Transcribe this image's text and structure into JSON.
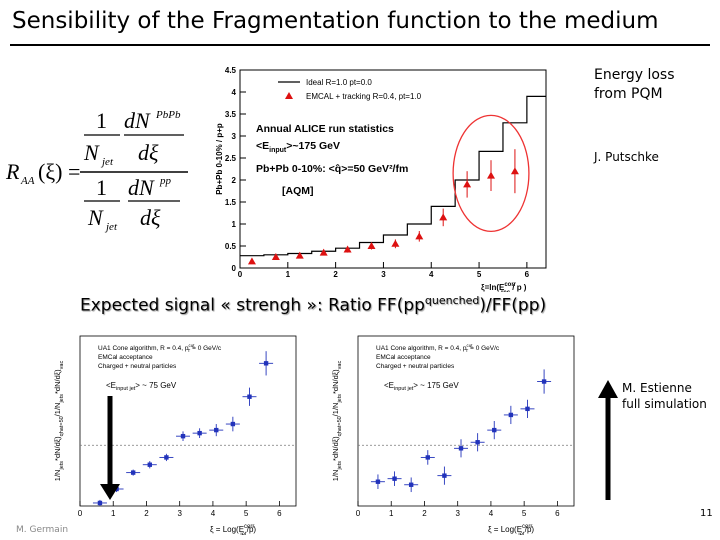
{
  "slide": {
    "title": "Sensibility of the Fragmentation function  to the medium",
    "expected_signal": {
      "prefix": "Expected signal « strengh »: Ratio FF(pp",
      "sup": "quenched",
      "suffix": ")/FF(pp)"
    },
    "energy_loss_note": [
      "Energy loss",
      "from PQM"
    ],
    "putschke_note": "J. Putschke",
    "estienne_note": [
      "M. Estienne",
      "full simulation"
    ],
    "page_number": "11",
    "author": "M. Germain"
  },
  "formula": {
    "lhs": "R",
    "lhs_sub": "AA",
    "arg": "(ξ) =",
    "num_frac_num": "1",
    "num_frac_den": "N",
    "num_frac_den_sub": "jet",
    "num_d_num": "dN",
    "num_d_num_sup": "PbPb",
    "num_d_den": "dξ",
    "den_frac_num": "1",
    "den_frac_den": "N",
    "den_frac_den_sub": "jet",
    "den_d_num": "dN",
    "den_d_num_sup": "pp",
    "den_d_den": "dξ"
  },
  "colors": {
    "red_marker": "#dd1111",
    "blue_marker": "#2233bb",
    "highlight": "#ee3333",
    "arrow": "#000000"
  },
  "chart_data": [
    {
      "id": "top",
      "type": "scatter",
      "ylabel": "Pb+Pb 0-10% / p+p",
      "xlabel": "ξ=ln(E",
      "xlabel_sup": "corr",
      "xlabel_sub": "rec",
      "xlabel_end": " / p )",
      "xlim": [
        0,
        6.4
      ],
      "ylim": [
        0,
        4.5
      ],
      "xticks": [
        0,
        1,
        2,
        3,
        4,
        5,
        6
      ],
      "yticks": [
        0,
        0.5,
        1,
        1.5,
        2,
        2.5,
        3,
        3.5,
        4,
        4.5
      ],
      "ytick_labels": [
        "0",
        "0.5",
        "1",
        "1.5",
        "2",
        "2.5",
        "3",
        "3.5",
        "4",
        "4.5"
      ],
      "legend": [
        {
          "label": "Ideal R=1.0 pt=0.0",
          "kind": "line"
        },
        {
          "label": "EMCAL + tracking R=0.4, pt=1.0",
          "kind": "triangle"
        }
      ],
      "annotations": [
        "Annual ALICE run statistics",
        "<E",
        "input",
        ">~175 GeV",
        "Pb+Pb 0-10%: <q̂>=50 GeV²/fm",
        "[AQM]"
      ],
      "step_edges": [
        0,
        0.5,
        1,
        1.5,
        2,
        2.5,
        3,
        3.5,
        4,
        4.5,
        5,
        5.5,
        6,
        6.4
      ],
      "step_values": [
        0.28,
        0.3,
        0.33,
        0.38,
        0.45,
        0.58,
        0.75,
        1.0,
        1.4,
        2.0,
        2.65,
        3.3,
        3.9
      ],
      "series": [
        {
          "name": "EMCAL + tracking R=0.4, pt=1.0",
          "x": [
            0.25,
            0.75,
            1.25,
            1.75,
            2.25,
            2.75,
            3.25,
            3.75,
            4.25,
            4.75,
            5.25,
            5.75
          ],
          "y": [
            0.15,
            0.25,
            0.28,
            0.35,
            0.42,
            0.5,
            0.55,
            0.72,
            1.15,
            1.9,
            2.1,
            2.2
          ],
          "err": [
            0.05,
            0.05,
            0.06,
            0.06,
            0.07,
            0.08,
            0.1,
            0.12,
            0.2,
            0.3,
            0.35,
            0.5
          ],
          "highlight_x": [
            4.75,
            5.25,
            5.75
          ]
        }
      ]
    },
    {
      "id": "bottom-left",
      "type": "scatter",
      "ylabel": "1/N",
      "ylabel_parts": [
        "1/N",
        "jets",
        "*dN/dξ)",
        "qhat=50",
        "/1/N",
        "jets",
        "*dN/dξ)",
        "vac"
      ],
      "xlabel": "ξ = Log(E",
      "xlabel_sup": "corr",
      "xlabel_sub": "jet",
      "xlabel_end": "/p)",
      "xlim": [
        0,
        6.5
      ],
      "ylim": [
        0,
        2.8
      ],
      "xticks": [
        0,
        1,
        2,
        3,
        4,
        5,
        6
      ],
      "legend_lines": [
        "UA1 Cone algorithm, R = 0.4, p",
        "cut",
        "T",
        " = 0 GeV/c",
        "EMCal acceptance",
        "Charged + neutral particles"
      ],
      "energy_label": [
        "<E",
        "input jet",
        "> ~ 75 GeV"
      ],
      "reference_line": 1,
      "series": [
        {
          "name": "ratio",
          "x": [
            0.6,
            1.1,
            1.6,
            2.1,
            2.6,
            3.1,
            3.6,
            4.1,
            4.6,
            5.1,
            5.6
          ],
          "y": [
            0.05,
            0.28,
            0.55,
            0.68,
            0.8,
            1.15,
            1.2,
            1.25,
            1.35,
            1.8,
            2.35
          ],
          "err": [
            0.05,
            0.05,
            0.05,
            0.06,
            0.06,
            0.08,
            0.08,
            0.1,
            0.12,
            0.15,
            0.2
          ]
        }
      ],
      "arrow": "down"
    },
    {
      "id": "bottom-right",
      "type": "scatter",
      "ylabel": "1/N",
      "ylabel_parts": [
        "1/N",
        "jets",
        "*dN/dξ)",
        "qhat=50",
        "/1/N",
        "jets",
        "*dN/dξ)",
        "vac"
      ],
      "xlabel": "ξ = Log(E",
      "xlabel_sup": "corr",
      "xlabel_sub": "jet",
      "xlabel_end": "/p)",
      "xlim": [
        0,
        6.5
      ],
      "ylim": [
        0,
        2.8
      ],
      "xticks": [
        0,
        1,
        2,
        3,
        4,
        5,
        6
      ],
      "legend_lines": [
        "UA1 Cone algorithm, R = 0.4, p",
        "cut",
        "T",
        " = 0 GeV/c",
        "EMCal acceptance",
        "Charged + neutral particles"
      ],
      "energy_label": [
        "<E",
        "input jet",
        "> ~ 175 GeV"
      ],
      "reference_line": 1,
      "series": [
        {
          "name": "ratio",
          "x": [
            0.6,
            1.1,
            1.6,
            2.1,
            2.6,
            3.1,
            3.6,
            4.1,
            4.6,
            5.1,
            5.6
          ],
          "y": [
            0.4,
            0.45,
            0.35,
            0.8,
            0.5,
            0.95,
            1.05,
            1.25,
            1.5,
            1.6,
            2.05
          ],
          "err": [
            0.12,
            0.12,
            0.12,
            0.12,
            0.15,
            0.15,
            0.15,
            0.15,
            0.15,
            0.15,
            0.2
          ]
        }
      ],
      "arrow": "up"
    }
  ]
}
